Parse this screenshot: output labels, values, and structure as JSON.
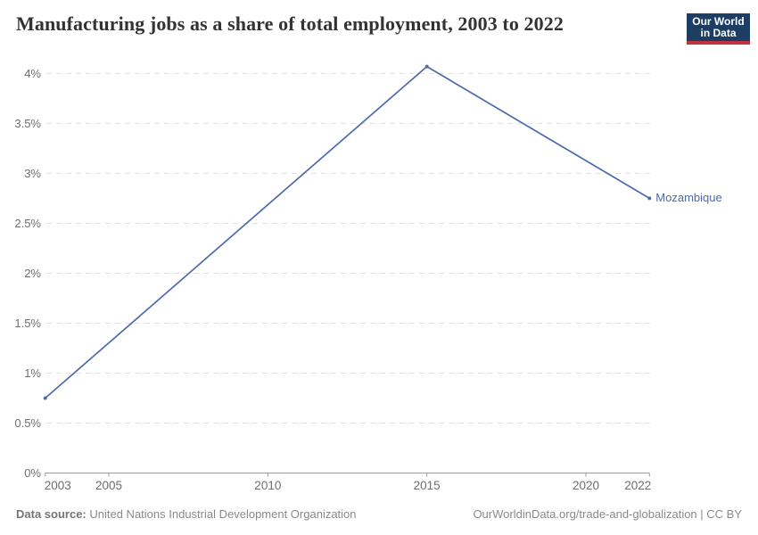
{
  "header": {
    "logo": {
      "line1": "Our World",
      "line2": "in Data",
      "bg_color": "#1d3d63",
      "accent_color": "#c0333f",
      "text_color": "#ffffff"
    }
  },
  "chart_data": {
    "type": "line",
    "title": "Manufacturing jobs as a share of total employment, 2003 to 2022",
    "xlabel": "",
    "ylabel": "",
    "x_range": [
      2003,
      2022
    ],
    "y_range": [
      0,
      4
    ],
    "grid": "dashed-horizontal",
    "legend_position": "end-of-line",
    "x_ticks": [
      {
        "value": 2003,
        "label": "2003"
      },
      {
        "value": 2005,
        "label": "2005"
      },
      {
        "value": 2010,
        "label": "2010"
      },
      {
        "value": 2015,
        "label": "2015"
      },
      {
        "value": 2020,
        "label": "2020"
      },
      {
        "value": 2022,
        "label": "2022"
      }
    ],
    "y_ticks": [
      {
        "value": 0,
        "label": "0%"
      },
      {
        "value": 0.5,
        "label": "0.5%"
      },
      {
        "value": 1,
        "label": "1%"
      },
      {
        "value": 1.5,
        "label": "1.5%"
      },
      {
        "value": 2,
        "label": "2%"
      },
      {
        "value": 2.5,
        "label": "2.5%"
      },
      {
        "value": 3,
        "label": "3%"
      },
      {
        "value": 3.5,
        "label": "3.5%"
      },
      {
        "value": 4,
        "label": "4%"
      }
    ],
    "series": [
      {
        "name": "Mozambique",
        "color": "#4c6bac",
        "points": [
          {
            "x": 2003,
            "y": 0.75
          },
          {
            "x": 2015,
            "y": 4.07
          },
          {
            "x": 2022,
            "y": 2.75
          }
        ]
      }
    ]
  },
  "colors": {
    "grid": "#e0e0e0",
    "axis": "#999999",
    "tick_label": "#6e6e6e",
    "title": "#333333",
    "line": "#4c6bac"
  },
  "footer": {
    "source_label": "Data source:",
    "source_text": " United Nations Industrial Development Organization",
    "right_text": "OurWorldinData.org/trade-and-globalization | CC BY"
  }
}
